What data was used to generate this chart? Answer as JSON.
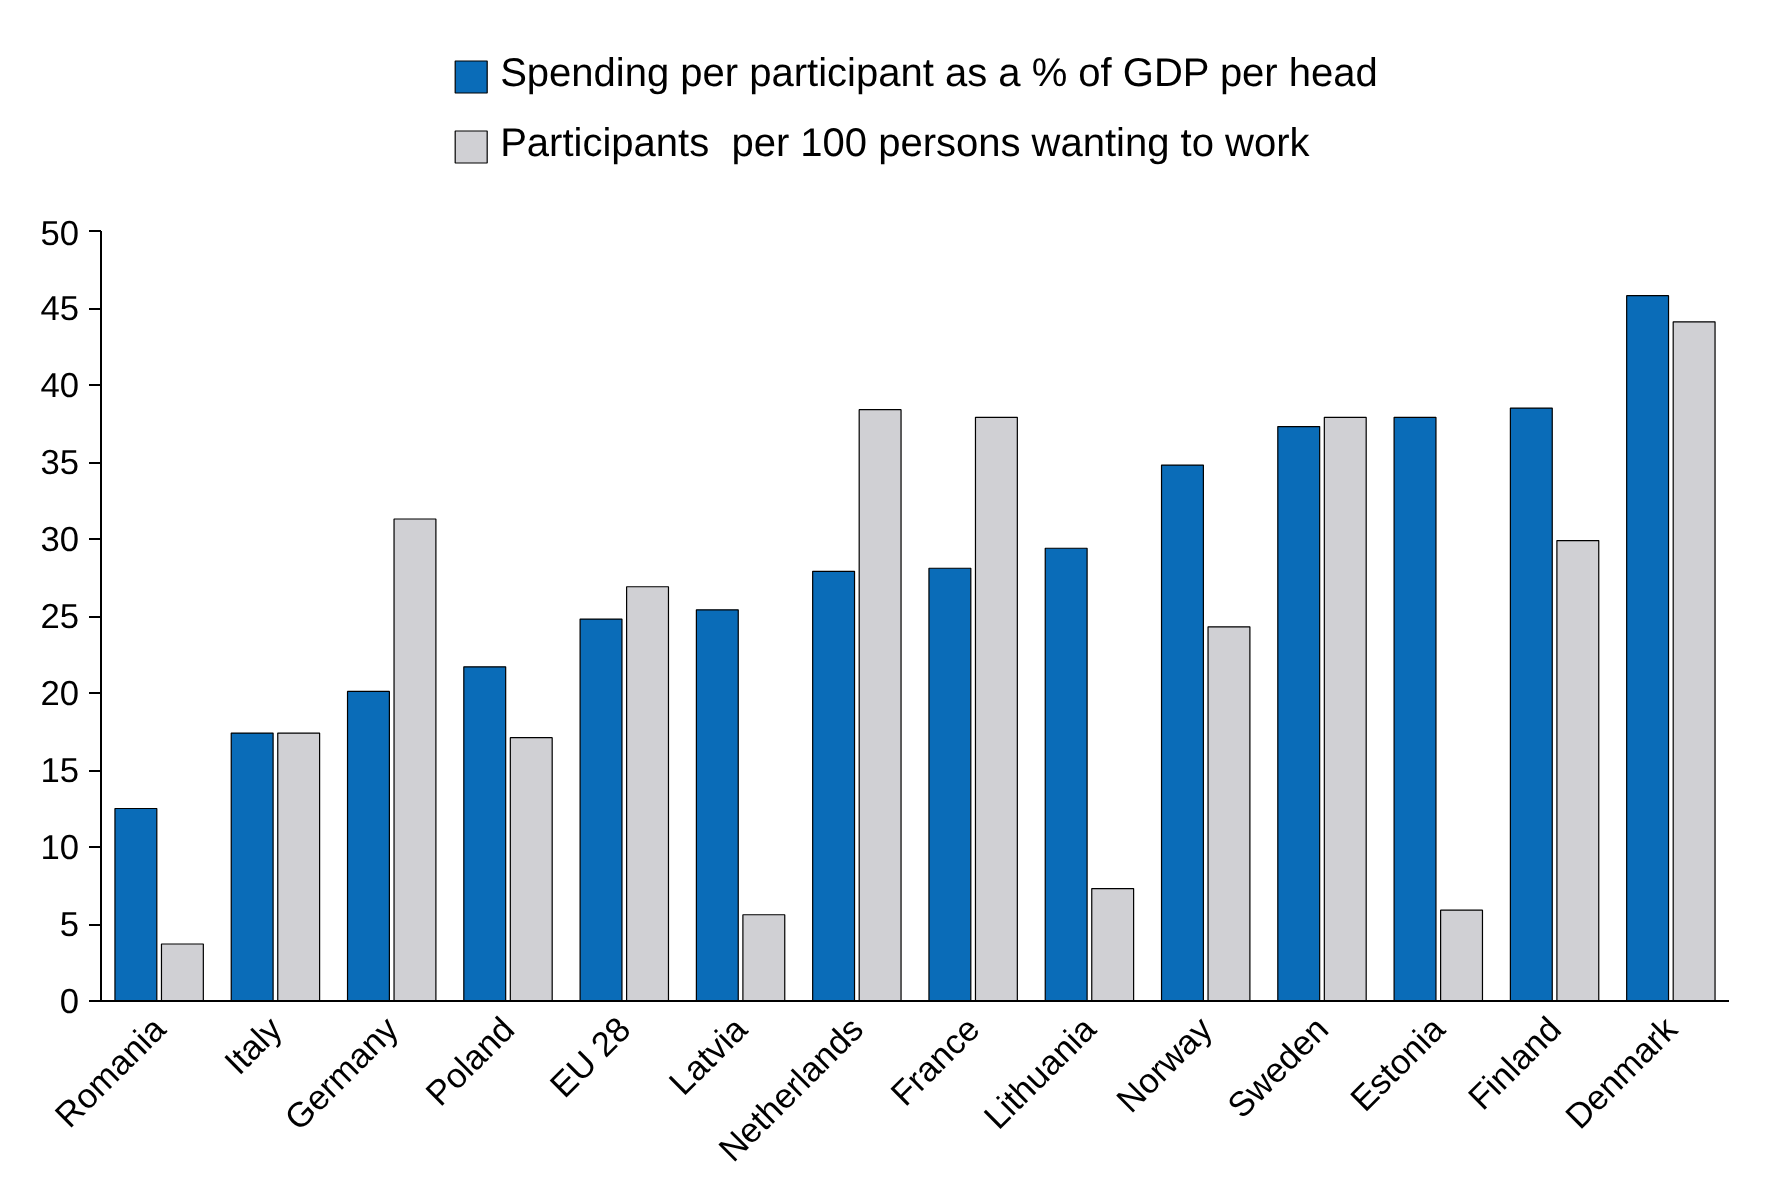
{
  "chart_data": {
    "type": "bar",
    "categories": [
      "Romania",
      "Italy",
      "Germany",
      "Poland",
      "EU 28",
      "Latvia",
      "Netherlands",
      "France",
      "Lithuania",
      "Norway",
      "Sweden",
      "Estonia",
      "Finland",
      "Denmark"
    ],
    "series": [
      {
        "name": "Spending per participant as a % of GDP per head",
        "color": "#0a6cb8",
        "values": [
          12.5,
          17.4,
          20.1,
          21.7,
          24.8,
          25.4,
          27.9,
          28.1,
          29.4,
          34.8,
          37.3,
          37.9,
          38.5,
          45.8
        ]
      },
      {
        "name": "Participants  per 100 persons wanting to work",
        "color": "#d0d0d4",
        "values": [
          3.7,
          17.4,
          31.3,
          17.1,
          26.9,
          5.6,
          38.4,
          37.9,
          7.3,
          24.3,
          37.9,
          5.9,
          29.9,
          44.1
        ]
      }
    ],
    "ylim": [
      0,
      50
    ],
    "yticks": [
      0,
      5,
      10,
      15,
      20,
      25,
      30,
      35,
      40,
      45,
      50
    ],
    "grid": false,
    "legend": "top"
  }
}
